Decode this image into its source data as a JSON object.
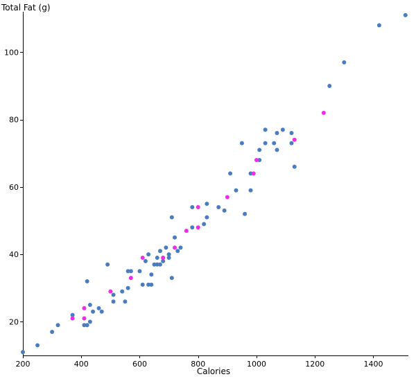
{
  "chart_data": {
    "type": "scatter",
    "title": "",
    "xlabel": "Calories",
    "ylabel": "Total Fat (g)",
    "xlim": [
      200,
      1520
    ],
    "ylim": [
      10,
      112
    ],
    "xticks": [
      200,
      400,
      600,
      800,
      1000,
      1200,
      1400
    ],
    "yticks": [
      20,
      40,
      60,
      80,
      100
    ],
    "grid": false,
    "legend": "none",
    "series": [
      {
        "color": "#4a7cc0",
        "points": [
          [
            200,
            11
          ],
          [
            250,
            13
          ],
          [
            300,
            17
          ],
          [
            320,
            19
          ],
          [
            370,
            22
          ],
          [
            410,
            19
          ],
          [
            420,
            19
          ],
          [
            420,
            32
          ],
          [
            430,
            20
          ],
          [
            430,
            25
          ],
          [
            440,
            23
          ],
          [
            460,
            24
          ],
          [
            470,
            23
          ],
          [
            490,
            37
          ],
          [
            510,
            26
          ],
          [
            510,
            28
          ],
          [
            540,
            29
          ],
          [
            550,
            26
          ],
          [
            560,
            30
          ],
          [
            560,
            35
          ],
          [
            570,
            35
          ],
          [
            600,
            35
          ],
          [
            610,
            31
          ],
          [
            620,
            38
          ],
          [
            630,
            40
          ],
          [
            630,
            31
          ],
          [
            640,
            34
          ],
          [
            640,
            31
          ],
          [
            650,
            37
          ],
          [
            660,
            37
          ],
          [
            660,
            39
          ],
          [
            670,
            41
          ],
          [
            670,
            37
          ],
          [
            680,
            38
          ],
          [
            680,
            39
          ],
          [
            690,
            42
          ],
          [
            700,
            39
          ],
          [
            700,
            40
          ],
          [
            710,
            33
          ],
          [
            710,
            51
          ],
          [
            720,
            45
          ],
          [
            730,
            41
          ],
          [
            740,
            42
          ],
          [
            780,
            48
          ],
          [
            780,
            54
          ],
          [
            820,
            49
          ],
          [
            830,
            51
          ],
          [
            830,
            55
          ],
          [
            870,
            54
          ],
          [
            890,
            53
          ],
          [
            910,
            64
          ],
          [
            930,
            59
          ],
          [
            950,
            73
          ],
          [
            960,
            52
          ],
          [
            980,
            64
          ],
          [
            980,
            59
          ],
          [
            1010,
            68
          ],
          [
            1010,
            71
          ],
          [
            1030,
            73
          ],
          [
            1030,
            77
          ],
          [
            1060,
            73
          ],
          [
            1070,
            76
          ],
          [
            1070,
            71
          ],
          [
            1090,
            77
          ],
          [
            1120,
            76
          ],
          [
            1120,
            73
          ],
          [
            1130,
            66
          ],
          [
            1250,
            90
          ],
          [
            1300,
            97
          ],
          [
            1420,
            108
          ],
          [
            1510,
            111
          ]
        ]
      },
      {
        "color": "#ee2ee6",
        "points": [
          [
            370,
            21
          ],
          [
            410,
            24
          ],
          [
            410,
            21
          ],
          [
            500,
            29
          ],
          [
            570,
            33
          ],
          [
            610,
            39
          ],
          [
            680,
            39
          ],
          [
            720,
            42
          ],
          [
            760,
            47
          ],
          [
            800,
            48
          ],
          [
            800,
            54
          ],
          [
            900,
            57
          ],
          [
            990,
            64
          ],
          [
            1000,
            68
          ],
          [
            1130,
            74
          ],
          [
            1230,
            82
          ]
        ]
      }
    ]
  }
}
